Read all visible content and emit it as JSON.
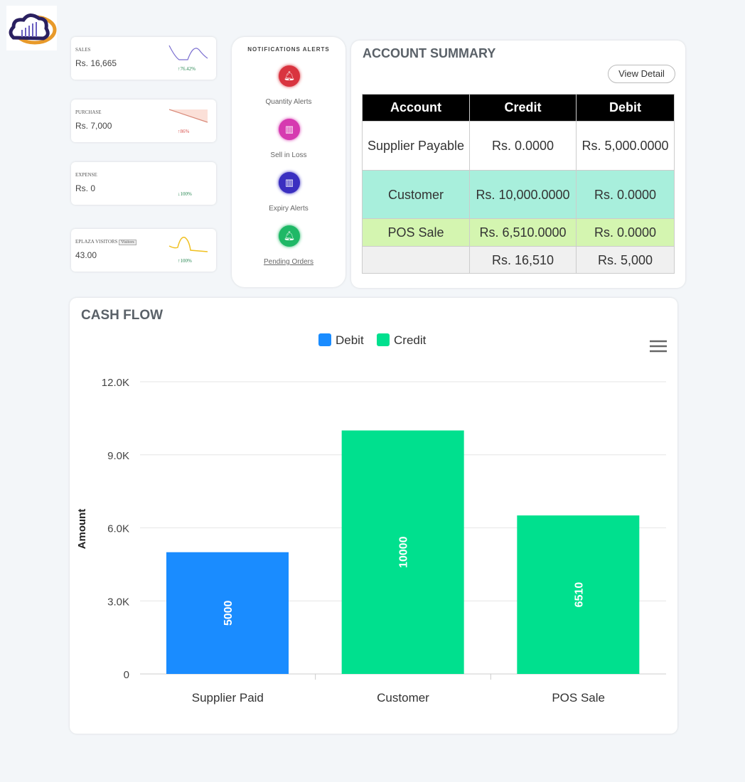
{
  "stats": [
    {
      "label": "SALES",
      "value": "Rs. 16,665",
      "change": "↑76.42%",
      "color": "#2e8b57"
    },
    {
      "label": "PURCHASE",
      "value": "Rs. 7,000",
      "change": "↑86%",
      "color": "#d9534f"
    },
    {
      "label": "EXPENSE",
      "value": "Rs. 0",
      "change": "↓100%",
      "color": "#2e8b57"
    },
    {
      "label": "EPLAZA VISITORS",
      "tag": "Visitors",
      "value": "43.00",
      "change": "↑100%",
      "color": "#2e8b57"
    }
  ],
  "notifications": {
    "title": "NOTIFICATIONS ALERTS",
    "items": [
      {
        "label": "Quantity Alerts",
        "icon": "bell-icon",
        "color": "#d9343f"
      },
      {
        "label": "Sell in Loss",
        "icon": "chart-icon",
        "color": "#d63ab0"
      },
      {
        "label": "Expiry Alerts",
        "icon": "chart-icon",
        "color": "#3a2fc0"
      },
      {
        "label": "Pending Orders",
        "icon": "bell-icon",
        "color": "#1fb866"
      }
    ]
  },
  "account_summary": {
    "title": "ACCOUNT SUMMARY",
    "view_detail": "View Detail",
    "headers": [
      "Account",
      "Credit",
      "Debit"
    ],
    "rows": [
      {
        "cells": [
          "Supplier Payable",
          "Rs. 0.0000",
          "Rs. 5,000.0000"
        ],
        "bg": "#ffffff"
      },
      {
        "cells": [
          "Customer",
          "Rs. 10,000.0000",
          "Rs. 0.0000"
        ],
        "bg": "#a8efdc"
      },
      {
        "cells": [
          "POS Sale",
          "Rs. 6,510.0000",
          "Rs. 0.0000"
        ],
        "bg": "#d4f5b0"
      },
      {
        "cells": [
          "",
          "Rs. 16,510",
          "Rs. 5,000"
        ],
        "bg": "#f0f0f0"
      }
    ]
  },
  "chart_data": {
    "type": "bar",
    "title": "CASH FLOW",
    "ylabel": "Amount",
    "xlabel": "",
    "categories": [
      "Supplier Paid",
      "Customer",
      "POS Sale"
    ],
    "series": [
      {
        "name": "Debit",
        "color": "#1a8cff",
        "values": [
          5000,
          0,
          0
        ]
      },
      {
        "name": "Credit",
        "color": "#00e08e",
        "values": [
          0,
          10000,
          6510
        ]
      }
    ],
    "bars": [
      {
        "category": "Supplier Paid",
        "series": "Debit",
        "value": 5000
      },
      {
        "category": "Customer",
        "series": "Credit",
        "value": 10000
      },
      {
        "category": "POS Sale",
        "series": "Credit",
        "value": 6510
      }
    ],
    "yticks": [
      "0",
      "3.0K",
      "6.0K",
      "9.0K",
      "12.0K"
    ],
    "ylim": [
      0,
      12000
    ],
    "grid": true,
    "legend": "top-center"
  }
}
